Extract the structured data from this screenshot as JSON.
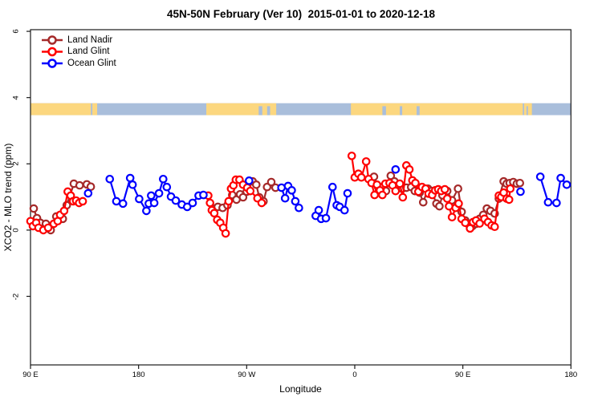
{
  "title": "45N-50N February (Ver 10)  2015-01-01 to 2020-12-18",
  "chart_data": {
    "type": "line",
    "title": "45N-50N February (Ver 10)  2015-01-01 to 2020-12-18",
    "xlabel": "Longitude",
    "ylabel": "XCO2 - MLO trend (ppm)",
    "grid": false,
    "legend_position": "top-left",
    "x_axis": {
      "note": "wrapped longitude axis starting at 90E, position in degrees east of 90E",
      "range_deg": [
        0,
        450
      ],
      "ticks_deg": [
        0,
        90,
        180,
        270,
        360,
        450
      ],
      "tick_labels": [
        "90 E",
        "180",
        "90 W",
        "0",
        "90 E",
        "180"
      ]
    },
    "y_axis": {
      "range": [
        -4.07,
        6.05
      ],
      "ticks": [
        -2,
        0,
        2,
        4,
        6
      ],
      "tick_labels": [
        "-2",
        "0",
        "2",
        "4",
        "6"
      ]
    },
    "legend": [
      {
        "label": "Land Nadir",
        "color": "#A52A2A"
      },
      {
        "label": "Land Glint",
        "color": "#FF0000"
      },
      {
        "label": "Ocean Glint",
        "color": "#0000FF"
      }
    ],
    "map_strip": {
      "description": "land/ocean strip for 45N-50N latitude band",
      "land_color": "#FCD77F",
      "ocean_color": "#A9BEDB",
      "value_top": 3.83,
      "value_bottom": 3.47,
      "land_segments_deg": [
        [
          0,
          50.3
        ],
        [
          51.5,
          55.5
        ],
        [
          146.4,
          204.6
        ],
        [
          266.8,
          409.9
        ],
        [
          411,
          417.5
        ]
      ],
      "ocean_patches_deg": [
        [
          190,
          193
        ],
        [
          197,
          199.5
        ],
        [
          293,
          296
        ],
        [
          307.5,
          309.5
        ],
        [
          321.5,
          324
        ],
        [
          413,
          414.2
        ]
      ]
    },
    "series": [
      {
        "name": "Land Nadir",
        "color": "#A52A2A",
        "segments": [
          [
            [
              2.7,
              0.65
            ],
            [
              5.4,
              0.36
            ],
            [
              8.1,
              0.22
            ],
            [
              12.8,
              0.19
            ],
            [
              16.8,
              0.0
            ],
            [
              21.5,
              0.41
            ],
            [
              26.9,
              0.34
            ],
            [
              30.2,
              0.75
            ],
            [
              36.1,
              1.4
            ],
            [
              40.9,
              1.35
            ],
            [
              46.9,
              1.38
            ],
            [
              50.2,
              1.31
            ]
          ],
          [
            [
              152,
              0.65
            ],
            [
              156,
              0.7
            ],
            [
              160,
              0.67
            ],
            [
              164,
              0.75
            ],
            [
              168,
              1.06
            ],
            [
              171.5,
              0.92
            ],
            [
              174.5,
              1.08
            ],
            [
              177,
              0.99
            ],
            [
              180,
              1.16
            ],
            [
              185,
              1.47
            ],
            [
              188,
              1.37
            ],
            [
              190.5,
              0.99
            ],
            [
              194,
              0.87
            ],
            [
              197,
              1.3
            ],
            [
              200.5,
              1.45
            ],
            [
              204,
              1.28
            ]
          ],
          [
            [
              286,
              1.61
            ],
            [
              289.5,
              1.3
            ],
            [
              293,
              1.3
            ],
            [
              296,
              1.18
            ],
            [
              300,
              1.64
            ],
            [
              303,
              1.47
            ],
            [
              306,
              1.35
            ],
            [
              309.5,
              1.25
            ],
            [
              313,
              1.28
            ],
            [
              317,
              1.3
            ],
            [
              320,
              1.18
            ],
            [
              324,
              1.13
            ],
            [
              327,
              0.84
            ],
            [
              331,
              1.25
            ],
            [
              334,
              1.18
            ],
            [
              338,
              0.8
            ],
            [
              340.5,
              0.72
            ],
            [
              343,
              1.05
            ],
            [
              347,
              1.18
            ],
            [
              351,
              0.9
            ],
            [
              356,
              1.25
            ],
            [
              359,
              0.55
            ],
            [
              362,
              0.29
            ],
            [
              365,
              0.17
            ],
            [
              368,
              0.12
            ],
            [
              371,
              0.19
            ],
            [
              374,
              0.34
            ],
            [
              377,
              0.46
            ],
            [
              380,
              0.65
            ],
            [
              383,
              0.58
            ],
            [
              386.5,
              0.5
            ],
            [
              390,
              0.95
            ],
            [
              394,
              1.47
            ],
            [
              396.5,
              1.4
            ],
            [
              399,
              1.42
            ],
            [
              402,
              1.45
            ],
            [
              405,
              1.4
            ],
            [
              407.5,
              1.42
            ]
          ]
        ]
      },
      {
        "name": "Land Glint",
        "color": "#FF0000",
        "segments": [
          [
            [
              0,
              0.27
            ],
            [
              2,
              0.12
            ],
            [
              4.7,
              0.22
            ],
            [
              6.7,
              0.07
            ],
            [
              10.7,
              0.0
            ],
            [
              14.7,
              0.07
            ],
            [
              19.4,
              0.19
            ],
            [
              22.7,
              0.27
            ],
            [
              24.7,
              0.46
            ],
            [
              28,
              0.58
            ],
            [
              31,
              1.16
            ],
            [
              33.5,
              1.04
            ],
            [
              35.5,
              0.87
            ],
            [
              38,
              0.89
            ],
            [
              40.5,
              0.82
            ],
            [
              43.5,
              0.87
            ]
          ],
          [
            [
              148,
              1.04
            ],
            [
              149.5,
              0.82
            ],
            [
              151,
              0.6
            ],
            [
              153,
              0.51
            ],
            [
              155.5,
              0.31
            ],
            [
              158,
              0.22
            ],
            [
              160.5,
              0.07
            ],
            [
              162.5,
              -0.1
            ],
            [
              165,
              0.87
            ],
            [
              167,
              1.25
            ],
            [
              169,
              1.35
            ],
            [
              171,
              1.52
            ],
            [
              174,
              1.52
            ],
            [
              177,
              1.37
            ],
            [
              180.5,
              1.28
            ],
            [
              183,
              1.18
            ],
            [
              189,
              0.96
            ],
            [
              192.5,
              0.82
            ]
          ],
          [
            [
              267.5,
              2.24
            ],
            [
              270,
              1.59
            ],
            [
              273,
              1.7
            ],
            [
              275.5,
              1.59
            ],
            [
              279.5,
              2.07
            ],
            [
              281.5,
              1.54
            ],
            [
              284,
              1.42
            ],
            [
              286.5,
              1.06
            ],
            [
              288.5,
              1.37
            ],
            [
              291,
              1.2
            ],
            [
              293,
              1.06
            ],
            [
              295.5,
              1.4
            ],
            [
              299,
              1.42
            ],
            [
              301.5,
              1.35
            ],
            [
              304,
              1.18
            ],
            [
              307.5,
              1.4
            ],
            [
              310,
              0.99
            ],
            [
              313,
              1.95
            ],
            [
              315.5,
              1.83
            ],
            [
              318,
              1.5
            ],
            [
              320.5,
              1.42
            ],
            [
              323,
              1.16
            ],
            [
              326,
              1.3
            ],
            [
              329,
              1.25
            ],
            [
              331.5,
              1.1
            ],
            [
              334.5,
              1.06
            ],
            [
              337,
              1.2
            ],
            [
              339.5,
              1.23
            ],
            [
              342,
              1.18
            ],
            [
              345,
              1.23
            ],
            [
              347,
              0.95
            ],
            [
              348.5,
              0.72
            ],
            [
              351,
              0.39
            ],
            [
              354,
              0.67
            ],
            [
              356.5,
              0.8
            ],
            [
              359,
              0.34
            ],
            [
              362,
              0.22
            ],
            [
              366,
              0.05
            ],
            [
              368.5,
              0.24
            ],
            [
              371,
              0.29
            ],
            [
              374,
              0.2
            ],
            [
              378,
              0.34
            ],
            [
              381,
              0.24
            ],
            [
              384,
              0.14
            ],
            [
              386.5,
              0.1
            ],
            [
              390,
              1.04
            ],
            [
              392,
              1.0
            ],
            [
              394,
              1.13
            ],
            [
              396.5,
              0.95
            ],
            [
              398.5,
              0.92
            ],
            [
              399.5,
              1.25
            ]
          ]
        ]
      },
      {
        "name": "Ocean Glint",
        "color": "#0000FF",
        "segments": [
          [
            [
              48,
              1.11
            ]
          ],
          [
            [
              66,
              1.54
            ],
            [
              71.5,
              0.87
            ],
            [
              77,
              0.8
            ],
            [
              83,
              1.57
            ],
            [
              85,
              1.37
            ],
            [
              90.5,
              0.94
            ],
            [
              96.5,
              0.58
            ],
            [
              98.5,
              0.8
            ],
            [
              100.5,
              1.04
            ],
            [
              103,
              0.82
            ],
            [
              107,
              1.11
            ],
            [
              110.5,
              1.54
            ],
            [
              113.5,
              1.3
            ],
            [
              117,
              1.01
            ],
            [
              121,
              0.89
            ],
            [
              126,
              0.77
            ],
            [
              130.5,
              0.7
            ],
            [
              135,
              0.82
            ],
            [
              140,
              1.04
            ],
            [
              144,
              1.06
            ]
          ],
          [
            [
              182,
              1.49
            ]
          ],
          [
            [
              209,
              1.28
            ],
            [
              212,
              0.96
            ],
            [
              214.5,
              1.33
            ],
            [
              217.5,
              1.2
            ],
            [
              220.5,
              0.87
            ],
            [
              223.5,
              0.67
            ]
          ],
          [
            [
              237.5,
              0.43
            ],
            [
              240,
              0.6
            ],
            [
              242,
              0.34
            ],
            [
              246,
              0.36
            ],
            [
              251.5,
              1.3
            ],
            [
              255,
              0.75
            ],
            [
              257.5,
              0.7
            ],
            [
              261.5,
              0.6
            ],
            [
              264,
              1.11
            ]
          ],
          [
            [
              304,
              1.83
            ]
          ],
          [
            [
              408,
              1.16
            ]
          ],
          [
            [
              424.5,
              1.61
            ],
            [
              431,
              0.84
            ],
            [
              438,
              0.82
            ],
            [
              441.5,
              1.57
            ],
            [
              446.5,
              1.37
            ]
          ]
        ]
      }
    ]
  }
}
